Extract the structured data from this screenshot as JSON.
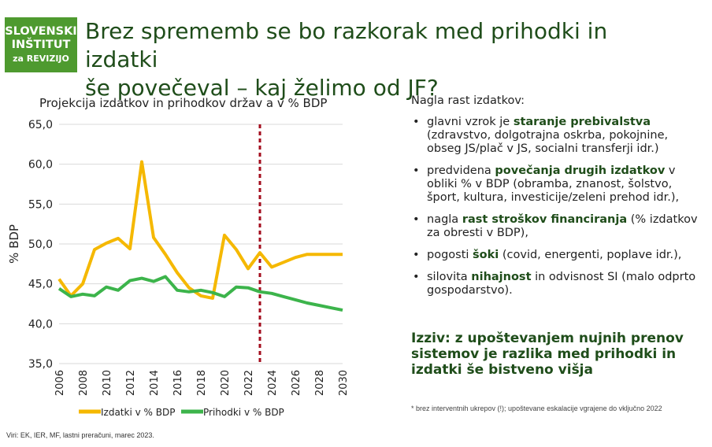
{
  "logo": {
    "line1": "SLOVENSKI",
    "line2": "INŠTITUT",
    "line3": "za REVIZIJO"
  },
  "title": {
    "line1": "Brez sprememb se bo razkorak med prihodki in izdatki",
    "line2": "še povečeval – kaj želimo od JF?"
  },
  "colors": {
    "expenses": "#f5b800",
    "revenues": "#3cb44b",
    "dashed": "#a30e1e",
    "accent": "#1f4d1a"
  },
  "chart_data": {
    "type": "line",
    "title": "Projekcija izdatkov in prihodkov držav a v % BDP",
    "ylabel": "% BDP",
    "xlabel": "",
    "ylim": [
      35,
      65
    ],
    "yticks": [
      "65,0",
      "60,0",
      "55,0",
      "50,0",
      "45,0",
      "40,0",
      "35,0"
    ],
    "ytick_values": [
      65,
      60,
      55,
      50,
      45,
      40,
      35
    ],
    "xticks": [
      "2006",
      "2008",
      "2010",
      "2012",
      "2014",
      "2016",
      "2018",
      "2020",
      "2022",
      "2024",
      "2026",
      "2028",
      "2030"
    ],
    "xlim": [
      2006,
      2030
    ],
    "vline": 2023,
    "grid": true,
    "series": [
      {
        "name": "Izdatki v % BDP",
        "color": "#f5b800",
        "x": [
          2006,
          2007,
          2008,
          2009,
          2010,
          2011,
          2012,
          2013,
          2014,
          2015,
          2016,
          2017,
          2018,
          2019,
          2020,
          2021,
          2022,
          2023,
          2024,
          2025,
          2026,
          2027,
          2028,
          2029,
          2030
        ],
        "values": [
          45.6,
          43.5,
          45.0,
          49.3,
          50.1,
          50.7,
          49.4,
          60.3,
          50.8,
          48.7,
          46.4,
          44.5,
          43.5,
          43.2,
          51.1,
          49.3,
          46.9,
          48.9,
          47.1,
          47.7,
          48.3,
          48.7,
          48.7,
          48.7,
          48.7
        ]
      },
      {
        "name": "Prihodki v % BDP",
        "color": "#3cb44b",
        "x": [
          2006,
          2007,
          2008,
          2009,
          2010,
          2011,
          2012,
          2013,
          2014,
          2015,
          2016,
          2017,
          2018,
          2019,
          2020,
          2021,
          2022,
          2023,
          2024,
          2025,
          2026,
          2027,
          2028,
          2029,
          2030
        ],
        "values": [
          44.4,
          43.4,
          43.7,
          43.5,
          44.6,
          44.2,
          45.4,
          45.7,
          45.3,
          45.9,
          44.2,
          44.0,
          44.2,
          43.9,
          43.4,
          44.6,
          44.5,
          44.0,
          43.8,
          43.4,
          43.0,
          42.6,
          42.3,
          42.0,
          41.7
        ]
      }
    ]
  },
  "right": {
    "heading": "Nagla rast izdatkov:",
    "bullets": [
      {
        "pre": "glavni vzrok je ",
        "bold": "staranje prebivalstva",
        "post": " (zdravstvo, dolgotrajna oskrba, pokojnine, obseg JS/plač v JS, socialni transferji idr.)"
      },
      {
        "pre": "predvidena ",
        "bold": "povečanja drugih izdatkov",
        "post": " v obliki % v BDP (obramba, znanost, šolstvo, šport, kultura, investicije/zeleni prehod idr.),"
      },
      {
        "pre": "nagla ",
        "bold": "rast stroškov financiranja",
        "post": " (% izdatkov za obresti v BDP),"
      },
      {
        "pre": "pogosti ",
        "bold": "šoki",
        "post": " (covid, energenti, poplave idr.),"
      },
      {
        "pre": "silovita ",
        "bold": "nihajnost",
        "post": " in odvisnost SI (malo odprto gospodarstvo)."
      }
    ],
    "challenge": "Izziv: z upoštevanjem nujnih prenov sistemov je razlika med prihodki in izdatki še bistveno višja",
    "footnote": "* brez interventnih ukrepov (!); upoštevane eskalacije vgrajene do vključno 2022"
  },
  "sources": "Viri: EK, IER, MF, lastni preračuni, marec 2023."
}
